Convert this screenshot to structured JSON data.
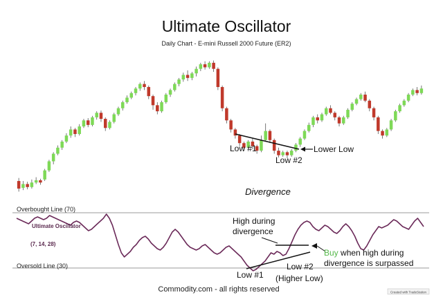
{
  "chart_data": [
    {
      "type": "candlestick",
      "title": "Ultimate Oscillator",
      "subtitle": "Daily Chart - E-mini Russell 2000 Future (ER2)",
      "series": [
        {
          "candles": [
            {
              "o": 40.0,
              "c": 35.0,
              "h": 42.0,
              "l": 33.0
            },
            {
              "o": 35.5,
              "c": 38.0,
              "h": 40.0,
              "l": 34.0
            },
            {
              "o": 38.0,
              "c": 36.0,
              "h": 39.5,
              "l": 34.5
            },
            {
              "o": 36.0,
              "c": 39.0,
              "h": 41.0,
              "l": 35.0
            },
            {
              "o": 39.0,
              "c": 40.5,
              "h": 42.5,
              "l": 38.0
            },
            {
              "o": 40.5,
              "c": 39.0,
              "h": 41.5,
              "l": 37.5
            },
            {
              "o": 41.0,
              "c": 47.0,
              "h": 48.0,
              "l": 40.0
            },
            {
              "o": 47.0,
              "c": 53.0,
              "h": 54.0,
              "l": 46.0
            },
            {
              "o": 53.0,
              "c": 58.0,
              "h": 59.0,
              "l": 51.0
            },
            {
              "o": 58.0,
              "c": 62.0,
              "h": 63.5,
              "l": 57.0
            },
            {
              "o": 62.0,
              "c": 66.0,
              "h": 67.0,
              "l": 60.5
            },
            {
              "o": 66.0,
              "c": 70.0,
              "h": 71.5,
              "l": 65.0
            },
            {
              "o": 70.0,
              "c": 74.0,
              "h": 76.0,
              "l": 68.5
            },
            {
              "o": 74.0,
              "c": 71.0,
              "h": 75.0,
              "l": 69.0
            },
            {
              "o": 71.0,
              "c": 76.0,
              "h": 77.5,
              "l": 70.0
            },
            {
              "o": 76.0,
              "c": 80.0,
              "h": 81.0,
              "l": 75.0
            },
            {
              "o": 80.0,
              "c": 77.0,
              "h": 81.5,
              "l": 75.5
            },
            {
              "o": 77.0,
              "c": 82.0,
              "h": 83.0,
              "l": 76.0
            },
            {
              "o": 82.0,
              "c": 85.0,
              "h": 86.0,
              "l": 80.5
            },
            {
              "o": 85.0,
              "c": 81.0,
              "h": 86.5,
              "l": 79.0
            },
            {
              "o": 81.0,
              "c": 75.0,
              "h": 82.0,
              "l": 73.0
            },
            {
              "o": 75.0,
              "c": 79.0,
              "h": 80.0,
              "l": 74.0
            },
            {
              "o": 79.0,
              "c": 84.0,
              "h": 85.0,
              "l": 78.0
            },
            {
              "o": 84.0,
              "c": 88.0,
              "h": 89.0,
              "l": 83.0
            },
            {
              "o": 88.0,
              "c": 92.0,
              "h": 93.0,
              "l": 86.5
            },
            {
              "o": 92.0,
              "c": 95.0,
              "h": 96.5,
              "l": 91.0
            },
            {
              "o": 95.0,
              "c": 98.0,
              "h": 99.0,
              "l": 94.0
            },
            {
              "o": 98.0,
              "c": 101.0,
              "h": 102.0,
              "l": 96.5
            },
            {
              "o": 101.0,
              "c": 104.0,
              "h": 105.0,
              "l": 99.5
            },
            {
              "o": 104.0,
              "c": 102.0,
              "h": 106.0,
              "l": 100.0
            },
            {
              "o": 102.0,
              "c": 96.0,
              "h": 103.0,
              "l": 94.0
            },
            {
              "o": 96.0,
              "c": 90.0,
              "h": 97.0,
              "l": 87.0
            },
            {
              "o": 90.0,
              "c": 86.0,
              "h": 92.0,
              "l": 84.0
            },
            {
              "o": 86.0,
              "c": 92.0,
              "h": 93.0,
              "l": 85.0
            },
            {
              "o": 92.0,
              "c": 97.0,
              "h": 98.0,
              "l": 91.0
            },
            {
              "o": 97.0,
              "c": 100.0,
              "h": 101.0,
              "l": 95.5
            },
            {
              "o": 100.0,
              "c": 104.0,
              "h": 105.0,
              "l": 99.0
            },
            {
              "o": 104.0,
              "c": 107.0,
              "h": 108.0,
              "l": 102.5
            },
            {
              "o": 107.0,
              "c": 110.0,
              "h": 111.5,
              "l": 105.5
            },
            {
              "o": 110.0,
              "c": 108.0,
              "h": 113.0,
              "l": 106.0
            },
            {
              "o": 108.0,
              "c": 111.0,
              "h": 112.0,
              "l": 106.5
            },
            {
              "o": 111.0,
              "c": 114.0,
              "h": 115.5,
              "l": 109.0
            },
            {
              "o": 114.0,
              "c": 117.0,
              "h": 118.0,
              "l": 112.5
            },
            {
              "o": 117.0,
              "c": 115.0,
              "h": 119.0,
              "l": 113.5
            },
            {
              "o": 115.0,
              "c": 118.0,
              "h": 119.0,
              "l": 114.0
            },
            {
              "o": 118.0,
              "c": 114.0,
              "h": 119.5,
              "l": 112.0
            },
            {
              "o": 114.0,
              "c": 102.0,
              "h": 115.0,
              "l": 100.0
            },
            {
              "o": 102.0,
              "c": 88.0,
              "h": 103.0,
              "l": 86.0
            },
            {
              "o": 88.0,
              "c": 80.0,
              "h": 89.0,
              "l": 78.0
            },
            {
              "o": 80.0,
              "c": 74.0,
              "h": 81.0,
              "l": 72.0
            },
            {
              "o": 74.0,
              "c": 70.0,
              "h": 75.0,
              "l": 68.0
            },
            {
              "o": 70.0,
              "c": 65.0,
              "h": 71.0,
              "l": 63.0
            },
            {
              "o": 65.0,
              "c": 62.0,
              "h": 66.0,
              "l": 60.0
            },
            {
              "o": 62.0,
              "c": 66.0,
              "h": 67.0,
              "l": 61.0
            },
            {
              "o": 66.0,
              "c": 63.0,
              "h": 68.0,
              "l": 61.0
            },
            {
              "o": 63.0,
              "c": 60.0,
              "h": 64.0,
              "l": 58.0
            },
            {
              "o": 60.0,
              "c": 67.0,
              "h": 70.0,
              "l": 59.0
            },
            {
              "o": 67.0,
              "c": 73.0,
              "h": 78.0,
              "l": 66.0
            },
            {
              "o": 73.0,
              "c": 67.0,
              "h": 74.0,
              "l": 65.0
            },
            {
              "o": 67.0,
              "c": 60.0,
              "h": 68.0,
              "l": 58.0
            },
            {
              "o": 60.0,
              "c": 57.0,
              "h": 62.0,
              "l": 55.5
            },
            {
              "o": 57.0,
              "c": 59.0,
              "h": 60.0,
              "l": 56.0
            },
            {
              "o": 59.0,
              "c": 57.0,
              "h": 60.0,
              "l": 55.0
            },
            {
              "o": 57.0,
              "c": 60.0,
              "h": 61.0,
              "l": 56.0
            },
            {
              "o": 60.0,
              "c": 64.0,
              "h": 65.0,
              "l": 59.0
            },
            {
              "o": 64.0,
              "c": 68.0,
              "h": 69.0,
              "l": 62.5
            },
            {
              "o": 68.0,
              "c": 73.0,
              "h": 74.0,
              "l": 67.0
            },
            {
              "o": 73.0,
              "c": 77.0,
              "h": 78.5,
              "l": 72.0
            },
            {
              "o": 77.0,
              "c": 82.0,
              "h": 83.0,
              "l": 75.5
            },
            {
              "o": 82.0,
              "c": 80.0,
              "h": 84.0,
              "l": 78.0
            },
            {
              "o": 80.0,
              "c": 84.0,
              "h": 85.0,
              "l": 79.0
            },
            {
              "o": 84.0,
              "c": 88.0,
              "h": 89.0,
              "l": 83.0
            },
            {
              "o": 88.0,
              "c": 85.0,
              "h": 90.0,
              "l": 84.0
            },
            {
              "o": 85.0,
              "c": 82.0,
              "h": 86.0,
              "l": 80.0
            },
            {
              "o": 82.0,
              "c": 78.0,
              "h": 83.0,
              "l": 76.0
            },
            {
              "o": 78.0,
              "c": 82.0,
              "h": 83.0,
              "l": 77.0
            },
            {
              "o": 82.0,
              "c": 87.0,
              "h": 88.0,
              "l": 81.0
            },
            {
              "o": 87.0,
              "c": 91.0,
              "h": 92.0,
              "l": 86.0
            },
            {
              "o": 91.0,
              "c": 94.0,
              "h": 95.0,
              "l": 90.0
            },
            {
              "o": 94.0,
              "c": 97.0,
              "h": 98.0,
              "l": 93.0
            },
            {
              "o": 97.0,
              "c": 93.0,
              "h": 99.0,
              "l": 92.0
            },
            {
              "o": 93.0,
              "c": 88.0,
              "h": 94.0,
              "l": 86.0
            },
            {
              "o": 88.0,
              "c": 82.0,
              "h": 89.0,
              "l": 80.0
            },
            {
              "o": 82.0,
              "c": 73.0,
              "h": 83.0,
              "l": 71.0
            },
            {
              "o": 73.0,
              "c": 70.0,
              "h": 74.0,
              "l": 68.0
            },
            {
              "o": 70.0,
              "c": 74.0,
              "h": 75.0,
              "l": 69.0
            },
            {
              "o": 74.0,
              "c": 80.0,
              "h": 81.0,
              "l": 73.0
            },
            {
              "o": 80.0,
              "c": 86.0,
              "h": 87.0,
              "l": 79.0
            },
            {
              "o": 86.0,
              "c": 90.0,
              "h": 91.0,
              "l": 85.0
            },
            {
              "o": 90.0,
              "c": 93.0,
              "h": 94.0,
              "l": 89.0
            },
            {
              "o": 93.0,
              "c": 97.0,
              "h": 98.0,
              "l": 92.0
            },
            {
              "o": 97.0,
              "c": 100.0,
              "h": 101.0,
              "l": 96.0
            },
            {
              "o": 100.0,
              "c": 98.0,
              "h": 102.0,
              "l": 96.5
            },
            {
              "o": 98.0,
              "c": 101.0,
              "h": 103.0,
              "l": 97.0
            }
          ]
        }
      ],
      "colors": {
        "up": "#7ed957",
        "down": "#c0392b",
        "wick": "#555555"
      },
      "annotations": {
        "low1": "Low #1",
        "low2": "Low #2",
        "lower_low": "Lower Low",
        "divergence": "Divergence"
      }
    },
    {
      "type": "line",
      "title": "Ultimate Oscillator",
      "subtitle": "(7, 14, 28)",
      "reference_lines": [
        {
          "label": "Overbought Line (70)",
          "value": 70
        },
        {
          "label": "Oversold Line (30)",
          "value": 30
        }
      ],
      "ylim": [
        24,
        76
      ],
      "series": [
        {
          "values": [
            66,
            65,
            64,
            63,
            62,
            64,
            66,
            67,
            66,
            65,
            66,
            68,
            67,
            66,
            65,
            64,
            63,
            62,
            61,
            63,
            64,
            63,
            61,
            59,
            57,
            58,
            60,
            62,
            64,
            66,
            69,
            66,
            61,
            54,
            47,
            41,
            38,
            40,
            42,
            45,
            47,
            50,
            52,
            53,
            51,
            48,
            46,
            44,
            43,
            45,
            48,
            52,
            56,
            58,
            56,
            53,
            50,
            47,
            45,
            44,
            43,
            44,
            46,
            47,
            45,
            43,
            41,
            40,
            41,
            43,
            45,
            46,
            44,
            42,
            40,
            38,
            35,
            32,
            30,
            28,
            29,
            31,
            33,
            35,
            38,
            41,
            40,
            42,
            41,
            39,
            40,
            44,
            49,
            54,
            58,
            61,
            63,
            64,
            63,
            60,
            58,
            57,
            59,
            61,
            60,
            58,
            56,
            55,
            57,
            60,
            62,
            60,
            57,
            53,
            48,
            44,
            43,
            46,
            50,
            54,
            57,
            60,
            59,
            60,
            61,
            63,
            65,
            64,
            62,
            60,
            59,
            58,
            61,
            64,
            66,
            63,
            60
          ]
        }
      ],
      "colors": {
        "line": "#6b2a59",
        "reference": "#9a9a9a"
      },
      "annotations": {
        "high_during_divergence": "High during\ndivergence",
        "buy_word": "Buy",
        "buy_rest": " when high during\ndivergence is surpassed",
        "low1": "Low #1",
        "low2": "Low #2\n(Higher Low)"
      }
    }
  ],
  "footer": {
    "source": "Commodity.com - all rights reserved",
    "badge": "Created with TradeStation"
  }
}
